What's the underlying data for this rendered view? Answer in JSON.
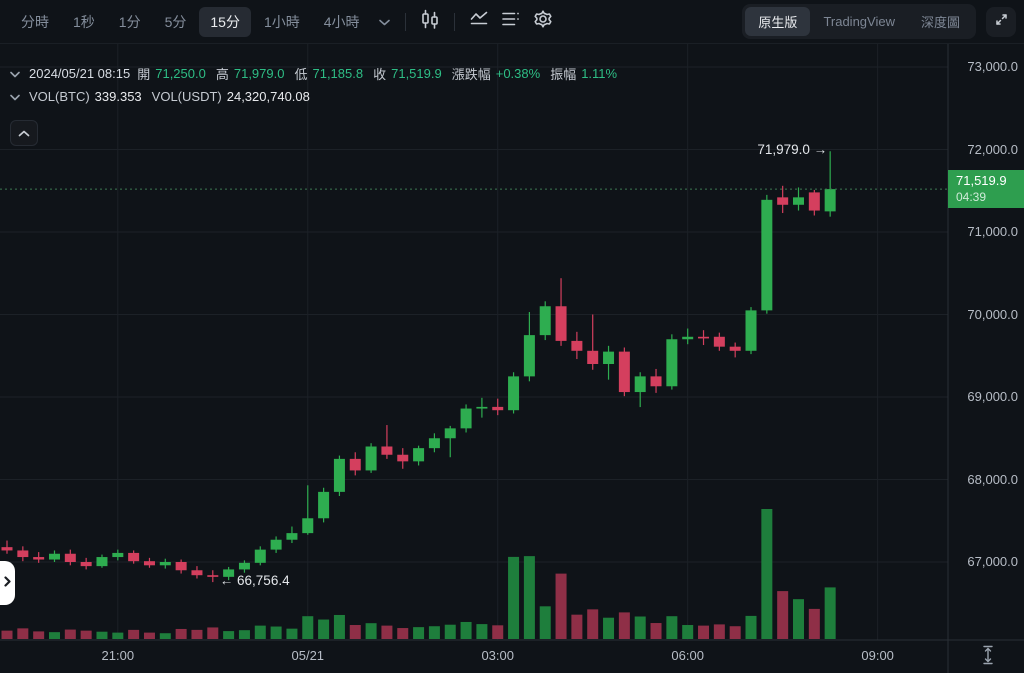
{
  "toolbar": {
    "intervals": [
      "分時",
      "1秒",
      "1分",
      "5分",
      "15分",
      "1小時",
      "4小時"
    ],
    "active_interval_index": 4,
    "icon_names": [
      "chevron-down-icon",
      "candlestick-chart-icon",
      "indicators-icon",
      "list-settings-icon",
      "gear-icon"
    ],
    "view_tabs": [
      "原生版",
      "TradingView",
      "深度圖"
    ],
    "active_view_tab_index": 0,
    "fullscreen_icon": "expand-icon"
  },
  "info_bar": {
    "datetime": "2024/05/21 08:15",
    "fields": [
      {
        "label": "開",
        "value": "71,250.0",
        "color": "green"
      },
      {
        "label": "高",
        "value": "71,979.0",
        "color": "green"
      },
      {
        "label": "低",
        "value": "71,185.8",
        "color": "green"
      },
      {
        "label": "收",
        "value": "71,519.9",
        "color": "green"
      },
      {
        "label": "漲跌幅",
        "value": "+0.38%",
        "color": "green"
      },
      {
        "label": "振幅",
        "value": "1.11%",
        "color": "green"
      }
    ]
  },
  "volume_bar": {
    "fields": [
      {
        "label": "VOL(BTC)",
        "value": "339.353",
        "color": "white"
      },
      {
        "label": "VOL(USDT)",
        "value": "24,320,740.08",
        "color": "white"
      }
    ]
  },
  "chart_data": {
    "type": "candlestick",
    "interval": "15分",
    "last_price": 71519.9,
    "last_price_label": "71,519.9",
    "countdown": "04:39",
    "high_annotation": {
      "text": "71,979.0 →",
      "price": 71979,
      "candle_index": 52
    },
    "low_annotation": {
      "text": "← 66,756.4",
      "price": 66756.4,
      "candle_index": 13
    },
    "y_axis": {
      "tick_prices": [
        73000,
        72000,
        71000,
        70000,
        69000,
        68000,
        67000
      ],
      "tick_labels": [
        "73,000.0",
        "72,000.0",
        "71,000.0",
        "70,000.0",
        "69,000.0",
        "68,000.0",
        "67,000.0"
      ],
      "price_top": 73000,
      "price_bottom": 67000
    },
    "x_axis": {
      "ticks": [
        {
          "label": "21:00",
          "index": 7
        },
        {
          "label": "05/21",
          "index": 19
        },
        {
          "label": "03:00",
          "index": 31
        },
        {
          "label": "06:00",
          "index": 43
        },
        {
          "label": "09:00",
          "index": 55
        }
      ]
    },
    "colors": {
      "up": "#2EAD50",
      "down": "#D43F5E",
      "volume_up": "#1E7E3C",
      "volume_down": "#8F2F47",
      "price_line": "#3E7A52",
      "badge_bg": "#2E9E4F",
      "grid": "#1C2127",
      "axis_border": "#2A2F36",
      "axis_text": "#B7BDC6"
    },
    "candles": [
      [
        "19:15",
        67180,
        67260,
        67100,
        67140,
        55
      ],
      [
        "19:30",
        67140,
        67190,
        67010,
        67060,
        70
      ],
      [
        "19:45",
        67060,
        67120,
        66990,
        67030,
        50
      ],
      [
        "20:00",
        67030,
        67140,
        67000,
        67100,
        45
      ],
      [
        "20:15",
        67100,
        67150,
        66960,
        67000,
        62
      ],
      [
        "20:30",
        67000,
        67050,
        66910,
        66950,
        55
      ],
      [
        "20:45",
        66950,
        67090,
        66930,
        67060,
        48
      ],
      [
        "21:00",
        67060,
        67150,
        67020,
        67110,
        42
      ],
      [
        "21:15",
        67110,
        67140,
        66980,
        67010,
        60
      ],
      [
        "21:30",
        67010,
        67050,
        66930,
        66960,
        42
      ],
      [
        "21:45",
        66960,
        67040,
        66920,
        67000,
        38
      ],
      [
        "22:00",
        67000,
        67030,
        66860,
        66900,
        66
      ],
      [
        "22:15",
        66900,
        66950,
        66800,
        66840,
        60
      ],
      [
        "22:30",
        66840,
        66900,
        66756.4,
        66820,
        76
      ],
      [
        "22:45",
        66820,
        66940,
        66780,
        66910,
        52
      ],
      [
        "23:00",
        66910,
        67020,
        66870,
        66990,
        58
      ],
      [
        "23:15",
        66990,
        67190,
        66960,
        67150,
        88
      ],
      [
        "23:30",
        67150,
        67310,
        67110,
        67270,
        82
      ],
      [
        "23:45",
        67270,
        67430,
        67230,
        67350,
        68
      ],
      [
        "00:00",
        67350,
        67930,
        67330,
        67530,
        150
      ],
      [
        "00:15",
        67530,
        67900,
        67480,
        67850,
        128
      ],
      [
        "00:30",
        67850,
        68290,
        67800,
        68250,
        158
      ],
      [
        "00:45",
        68250,
        68330,
        68050,
        68110,
        92
      ],
      [
        "01:00",
        68110,
        68440,
        68080,
        68400,
        104
      ],
      [
        "01:15",
        68400,
        68660,
        68250,
        68300,
        88
      ],
      [
        "01:30",
        68300,
        68380,
        68130,
        68220,
        72
      ],
      [
        "01:45",
        68220,
        68410,
        68170,
        68380,
        78
      ],
      [
        "02:00",
        68380,
        68560,
        68330,
        68500,
        84
      ],
      [
        "02:15",
        68500,
        68650,
        68270,
        68620,
        94
      ],
      [
        "02:30",
        68620,
        68910,
        68570,
        68860,
        112
      ],
      [
        "02:45",
        68860,
        68990,
        68750,
        68880,
        98
      ],
      [
        "03:00",
        68880,
        68980,
        68780,
        68840,
        90
      ],
      [
        "03:15",
        68840,
        69300,
        68800,
        69250,
        540
      ],
      [
        "03:30",
        69250,
        70030,
        69190,
        69750,
        545
      ],
      [
        "03:45",
        69750,
        70160,
        69690,
        70100,
        215
      ],
      [
        "04:00",
        70100,
        70440,
        69620,
        69680,
        430
      ],
      [
        "04:15",
        69680,
        69790,
        69460,
        69560,
        160
      ],
      [
        "04:30",
        69560,
        70000,
        69330,
        69400,
        195
      ],
      [
        "04:45",
        69400,
        69620,
        69210,
        69550,
        140
      ],
      [
        "05:00",
        69550,
        69600,
        69010,
        69060,
        175
      ],
      [
        "05:15",
        69060,
        69300,
        68878,
        69250,
        148
      ],
      [
        "05:30",
        69250,
        69340,
        69050,
        69130,
        105
      ],
      [
        "05:45",
        69130,
        69760,
        69090,
        69700,
        150
      ],
      [
        "06:00",
        69700,
        69830,
        69640,
        69730,
        92
      ],
      [
        "06:15",
        69730,
        69810,
        69630,
        69710,
        88
      ],
      [
        "06:30",
        69730,
        69780,
        69560,
        69610,
        96
      ],
      [
        "06:45",
        69610,
        69660,
        69480,
        69560,
        84
      ],
      [
        "07:00",
        69560,
        70090,
        69520,
        70050,
        152
      ],
      [
        "07:15",
        70050,
        71450,
        70010,
        71390,
        855
      ],
      [
        "07:30",
        71420,
        71560,
        71230,
        71330,
        315
      ],
      [
        "07:45",
        71330,
        71540,
        71260,
        71420,
        262
      ],
      [
        "08:00",
        71480,
        71510,
        71200,
        71260,
        198
      ],
      [
        "08:15",
        71250,
        71979,
        71185.8,
        71519.9,
        339.353
      ]
    ]
  }
}
